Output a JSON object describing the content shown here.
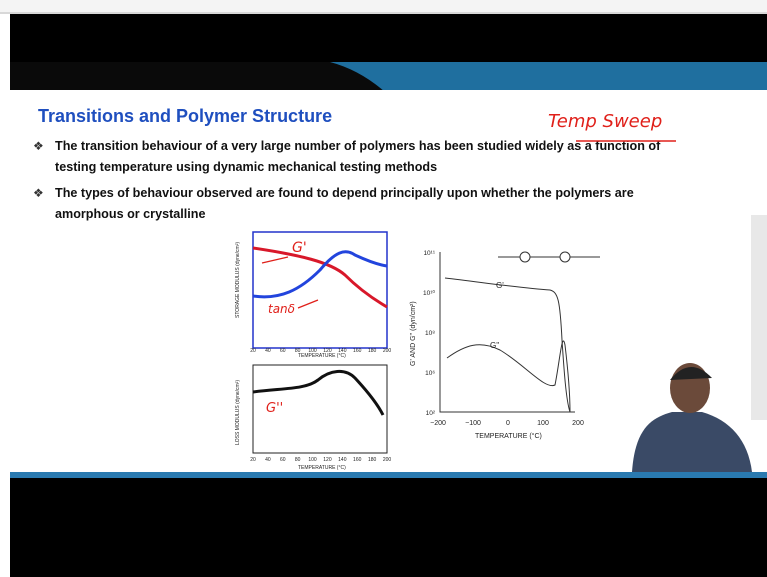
{
  "slide": {
    "title": "Transitions and Polymer Structure",
    "bullets": [
      {
        "lines": [
          "The transition behaviour of a very large number of polymers has been studied widely as a function of",
          "testing temperature using dynamic mechanical testing methods"
        ]
      },
      {
        "lines": [
          "The types of behaviour observed are found to depend principally upon whether the polymers are",
          "amorphous or crystalline"
        ]
      }
    ],
    "handwriting": {
      "sweep": "Temp Sweep",
      "storage": "G'",
      "tan": "tanδ",
      "loss": "G''"
    },
    "left_figure": {
      "storage_ylabel": "STORAGE MODULUS (dyne/cm²)",
      "loss_ylabel": "LOSS MODULUS (dyne/cm²)",
      "xlabel": "TEMPERATURE (°C)",
      "xticks": [
        "20",
        "40",
        "60",
        "80",
        "100",
        "120",
        "140",
        "160",
        "180",
        "200"
      ]
    },
    "right_figure": {
      "ylabel": "G' AND G'' (dyn/cm²)",
      "xlabel": "TEMPERATURE (°C)",
      "xticks": [
        "−200",
        "−100",
        "0",
        "100",
        "200"
      ],
      "yticks": [
        "10¹¹",
        "10¹⁰",
        "10⁸",
        "10⁶",
        "10²"
      ],
      "curve_upper": "G'",
      "curve_lower": "G''"
    }
  }
}
